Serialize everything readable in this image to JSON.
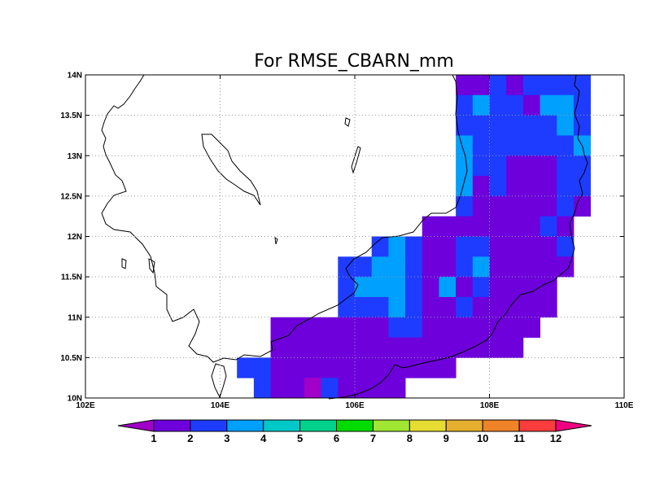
{
  "title": "For RMSE_CBARN_mm",
  "map": {
    "lon_range": [
      102,
      110
    ],
    "lat_range": [
      10,
      14
    ],
    "x_ticks": [
      {
        "value": 102,
        "label": "102E"
      },
      {
        "value": 104,
        "label": "104E"
      },
      {
        "value": 106,
        "label": "106E"
      },
      {
        "value": 108,
        "label": "108E"
      },
      {
        "value": 110,
        "label": "110E"
      }
    ],
    "y_ticks": [
      {
        "value": 10,
        "label": "10N"
      },
      {
        "value": 10.5,
        "label": "10.5N"
      },
      {
        "value": 11,
        "label": "11N"
      },
      {
        "value": 11.5,
        "label": "11.5N"
      },
      {
        "value": 12,
        "label": "12N"
      },
      {
        "value": 12.5,
        "label": "12.5N"
      },
      {
        "value": 13,
        "label": "13N"
      },
      {
        "value": 13.5,
        "label": "13.5N"
      },
      {
        "value": 14,
        "label": "14N"
      }
    ],
    "grid_lines": "dotted",
    "cell_size_deg": 0.25
  },
  "colorbar": {
    "labels": [
      "1",
      "2",
      "3",
      "4",
      "5",
      "6",
      "7",
      "8",
      "9",
      "10",
      "11",
      "12"
    ],
    "colors": [
      "#a000c8",
      "#6e00dc",
      "#1e3cff",
      "#00a0ff",
      "#00c8c8",
      "#00d28c",
      "#00dc00",
      "#a0e632",
      "#e6dc32",
      "#e6af2d",
      "#f08228",
      "#fa3c3c",
      "#f00082"
    ]
  },
  "chart_data": {
    "type": "heatmap",
    "title": "For RMSE_CBARN_mm",
    "xlabel": "",
    "ylabel": "",
    "xlim": [
      102,
      110
    ],
    "ylim": [
      10,
      14
    ],
    "value_note": "class index 0 = below 1, 1 = 1-2, 2 = 2-3, 3 = 3-4",
    "rows": [
      {
        "lat": 13.875,
        "start_lon": 107.5,
        "classes": [
          1,
          1,
          2,
          1,
          2,
          2,
          2,
          2
        ]
      },
      {
        "lat": 13.625,
        "start_lon": 107.5,
        "classes": [
          2,
          3,
          2,
          2,
          1,
          3,
          3,
          2
        ]
      },
      {
        "lat": 13.375,
        "start_lon": 107.5,
        "classes": [
          2,
          2,
          2,
          2,
          2,
          2,
          3,
          2
        ]
      },
      {
        "lat": 13.125,
        "start_lon": 107.5,
        "classes": [
          3,
          2,
          2,
          2,
          2,
          2,
          2,
          3
        ]
      },
      {
        "lat": 12.875,
        "start_lon": 107.5,
        "classes": [
          3,
          2,
          2,
          1,
          1,
          1,
          2,
          2
        ]
      },
      {
        "lat": 12.625,
        "start_lon": 107.5,
        "classes": [
          3,
          1,
          2,
          1,
          1,
          1,
          2,
          2
        ]
      },
      {
        "lat": 12.375,
        "start_lon": 107.5,
        "classes": [
          2,
          1,
          1,
          1,
          1,
          1,
          2,
          1
        ]
      },
      {
        "lat": 12.125,
        "start_lon": 107.0,
        "classes": [
          1,
          1,
          1,
          1,
          1,
          1,
          1,
          2,
          1
        ]
      },
      {
        "lat": 11.875,
        "start_lon": 106.25,
        "classes": [
          2,
          3,
          2,
          1,
          1,
          2,
          2,
          1,
          1,
          1,
          1,
          2
        ]
      },
      {
        "lat": 11.625,
        "start_lon": 105.75,
        "classes": [
          2,
          2,
          3,
          3,
          2,
          1,
          1,
          2,
          3,
          1,
          1,
          1,
          1,
          1
        ]
      },
      {
        "lat": 11.375,
        "start_lon": 105.75,
        "classes": [
          2,
          3,
          3,
          3,
          2,
          1,
          3,
          1,
          2,
          1,
          1,
          1,
          1
        ]
      },
      {
        "lat": 11.125,
        "start_lon": 105.75,
        "classes": [
          2,
          2,
          2,
          3,
          2,
          1,
          1,
          2,
          1,
          1,
          1,
          1,
          1
        ]
      },
      {
        "lat": 10.875,
        "start_lon": 104.75,
        "classes": [
          1,
          1,
          1,
          1,
          1,
          1,
          1,
          2,
          2,
          1,
          1,
          1,
          1,
          1,
          1,
          1
        ]
      },
      {
        "lat": 10.625,
        "start_lon": 104.75,
        "classes": [
          1,
          1,
          1,
          1,
          1,
          1,
          1,
          1,
          1,
          1,
          1,
          1,
          1,
          1,
          1
        ]
      },
      {
        "lat": 10.375,
        "start_lon": 104.25,
        "classes": [
          2,
          2,
          1,
          1,
          1,
          1,
          1,
          1,
          1,
          1,
          1,
          1,
          1
        ]
      },
      {
        "lat": 10.125,
        "start_lon": 104.5,
        "classes": [
          2,
          1,
          1,
          0,
          2,
          1,
          1,
          1,
          1
        ]
      }
    ]
  }
}
